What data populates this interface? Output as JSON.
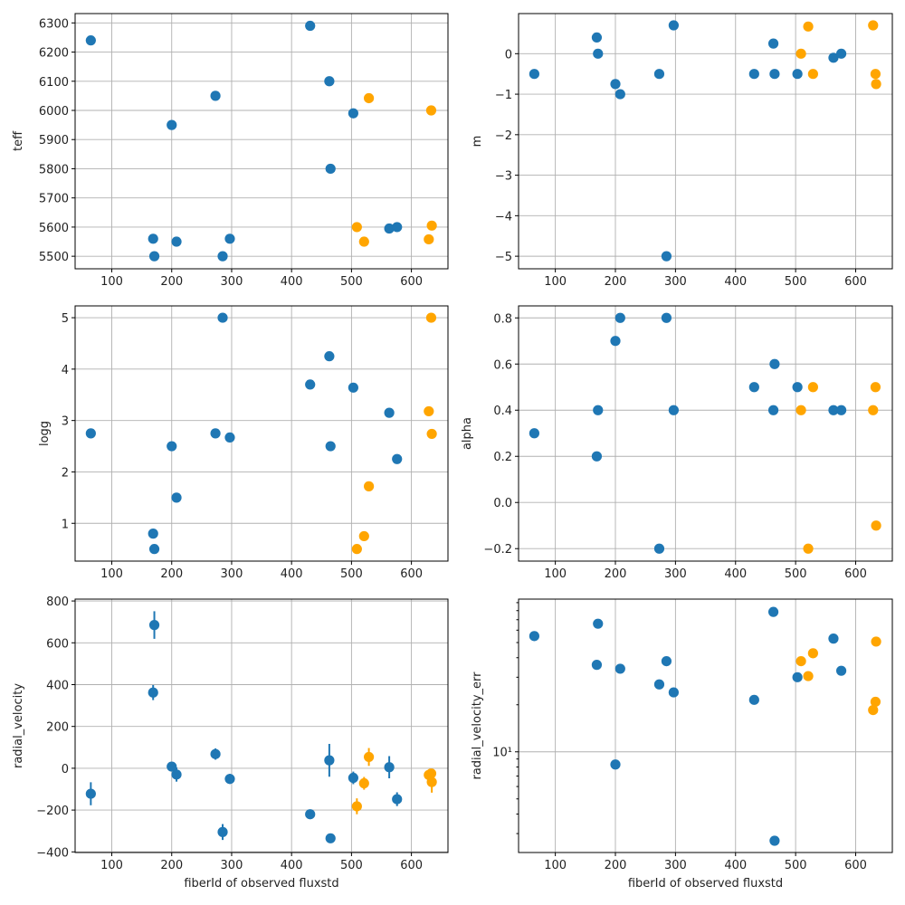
{
  "chart_data": {
    "type": "scatter",
    "layout": "3x2 grid",
    "xlabel": "fiberId of observed fluxstd",
    "legend": "none",
    "grid": true,
    "series_colors": {
      "blue": "#1f77b4",
      "orange": "#ffa500"
    },
    "x": {
      "blue": [
        65,
        169,
        171,
        200,
        208,
        273,
        285,
        297,
        431,
        463,
        465,
        503,
        563,
        576
      ],
      "orange": [
        509,
        521,
        529,
        629,
        633,
        634
      ]
    },
    "panels": [
      {
        "id": "teff",
        "ylabel": "teff",
        "yscale": "linear",
        "ylim": [
          5457,
          6332
        ],
        "yticks": [
          5500,
          5600,
          5700,
          5800,
          5900,
          6000,
          6100,
          6200,
          6300
        ],
        "ytick_labels": [
          "5500",
          "5600",
          "5700",
          "5800",
          "5900",
          "6000",
          "6100",
          "6200",
          "6300"
        ],
        "blue": [
          6240,
          5560,
          5500,
          5950,
          5550,
          6050,
          5500,
          5560,
          6290,
          6100,
          5800,
          5990,
          5595,
          5600
        ],
        "orange": [
          5600,
          5550,
          6042,
          5558,
          6000,
          5605
        ]
      },
      {
        "id": "m",
        "ylabel": "m",
        "yscale": "linear",
        "ylim": [
          -5.31,
          0.99
        ],
        "yticks": [
          -5,
          -4,
          -3,
          -2,
          -1,
          0
        ],
        "ytick_labels": [
          "−5",
          "−4",
          "−3",
          "−2",
          "−1",
          "0"
        ],
        "blue": [
          -0.5,
          0.4,
          0.0,
          -0.75,
          -1.0,
          -0.5,
          -5.0,
          0.7,
          -0.5,
          0.25,
          -0.5,
          -0.5,
          -0.1,
          0.0
        ],
        "orange": [
          0.0,
          0.67,
          -0.5,
          0.7,
          -0.5,
          -0.75
        ]
      },
      {
        "id": "logg",
        "ylabel": "logg",
        "yscale": "linear",
        "ylim": [
          0.265,
          5.23
        ],
        "yticks": [
          1,
          2,
          3,
          4,
          5
        ],
        "ytick_labels": [
          "1",
          "2",
          "3",
          "4",
          "5"
        ],
        "blue": [
          2.75,
          0.8,
          0.5,
          2.5,
          1.5,
          2.75,
          5.0,
          2.67,
          3.7,
          4.25,
          2.5,
          3.64,
          3.15,
          2.25
        ],
        "orange": [
          0.5,
          0.75,
          1.72,
          3.18,
          5.0,
          2.74
        ]
      },
      {
        "id": "alpha",
        "ylabel": "alpha",
        "yscale": "linear",
        "ylim": [
          -0.254,
          0.852
        ],
        "yticks": [
          -0.2,
          0.0,
          0.2,
          0.4,
          0.6,
          0.8
        ],
        "ytick_labels": [
          "−0.2",
          "0.0",
          "0.2",
          "0.4",
          "0.6",
          "0.8"
        ],
        "blue": [
          0.3,
          0.2,
          0.4,
          0.7,
          0.8,
          -0.2,
          0.8,
          0.4,
          0.5,
          0.4,
          0.6,
          0.5,
          0.4,
          0.4
        ],
        "orange": [
          0.4,
          -0.2,
          0.5,
          0.4,
          0.5,
          -0.1
        ]
      },
      {
        "id": "radial_velocity",
        "ylabel": "radial_velocity",
        "yscale": "linear",
        "ylim": [
          -403,
          809
        ],
        "yticks": [
          -400,
          -200,
          0,
          200,
          400,
          600,
          800
        ],
        "ytick_labels": [
          "−400",
          "−200",
          "0",
          "200",
          "400",
          "600",
          "800"
        ],
        "xlabel": "fiberId of observed fluxstd",
        "errorbars": true,
        "blue": [
          -122,
          362,
          685,
          8,
          -30,
          68,
          -305,
          -51,
          -220,
          38,
          -335,
          -46,
          5,
          -148
        ],
        "orange": [
          -182,
          -72,
          54,
          -32,
          -25,
          -66
        ],
        "blue_err": [
          55,
          36,
          66,
          8.3,
          34,
          27,
          38,
          24,
          21.5,
          78.5,
          2.7,
          30,
          53,
          33
        ],
        "orange_err": [
          38,
          30.5,
          42.7,
          18.5,
          20.9,
          50.7
        ]
      },
      {
        "id": "radial_velocity_err",
        "ylabel": "radial_velocity_err",
        "yscale": "log",
        "ylim": [
          2.27,
          94.8
        ],
        "yticks": [
          10
        ],
        "ytick_labels": [
          "10¹"
        ],
        "yminor_ticks": [
          3,
          4,
          5,
          6,
          7,
          8,
          9,
          20,
          30,
          40,
          50,
          60,
          70,
          80,
          90
        ],
        "xlabel": "fiberId of observed fluxstd",
        "blue": [
          55,
          36,
          66,
          8.3,
          34,
          27,
          38,
          24,
          21.5,
          78.5,
          2.7,
          30,
          53,
          33
        ],
        "orange": [
          38,
          30.5,
          42.7,
          18.5,
          20.9,
          50.7
        ]
      }
    ],
    "xlim": [
      38.8,
      661
    ],
    "xticks": [
      100,
      200,
      300,
      400,
      500,
      600
    ],
    "xtick_labels": [
      "100",
      "200",
      "300",
      "400",
      "500",
      "600"
    ]
  }
}
